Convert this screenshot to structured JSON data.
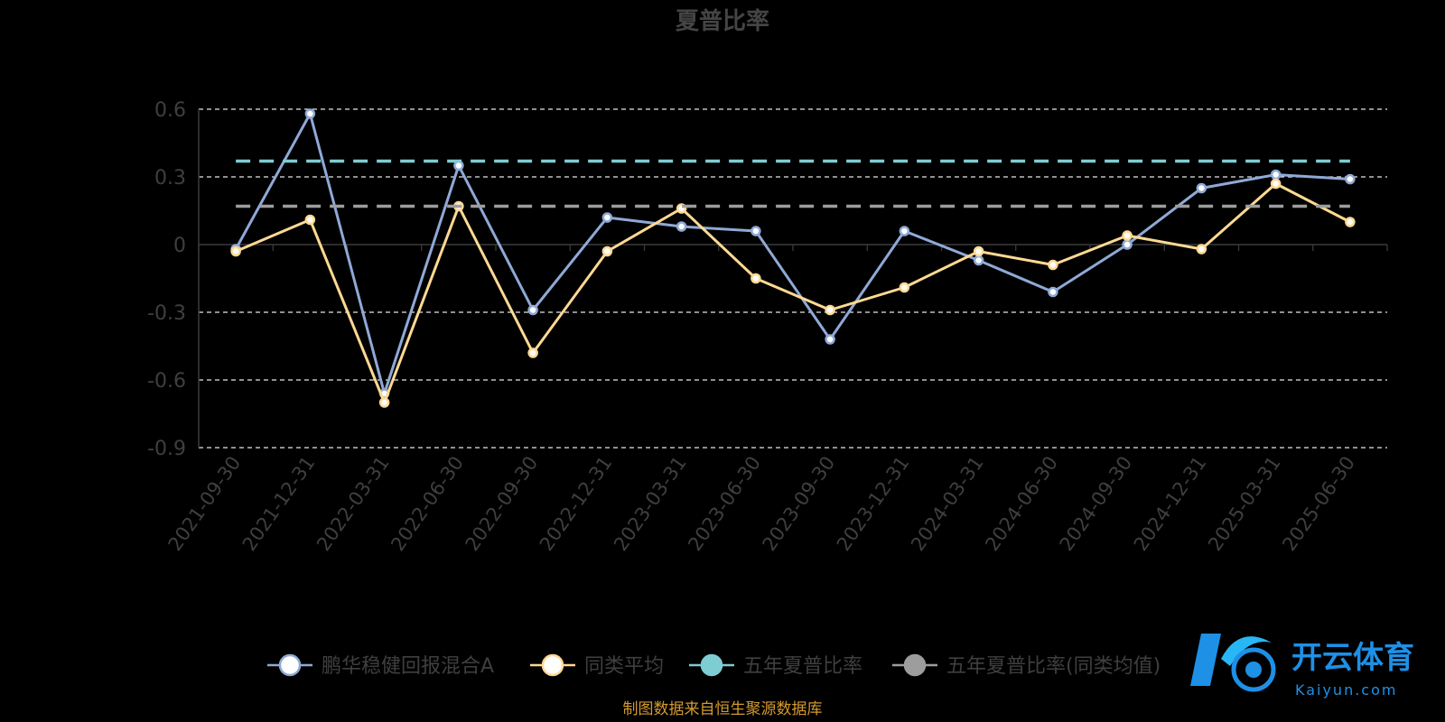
{
  "chart_data": {
    "type": "line",
    "title": "夏普比率",
    "categories": [
      "2021-09-30",
      "2021-12-31",
      "2022-03-31",
      "2022-06-30",
      "2022-09-30",
      "2022-12-31",
      "2023-03-31",
      "2023-06-30",
      "2023-09-30",
      "2023-12-31",
      "2024-03-31",
      "2024-06-30",
      "2024-09-30",
      "2024-12-31",
      "2025-03-31",
      "2025-06-30"
    ],
    "ylim": [
      -0.9,
      0.6
    ],
    "yticks": [
      0.6,
      0.3,
      0,
      -0.3,
      -0.6,
      -0.9
    ],
    "ytick_labels": [
      "0.6",
      "0.3",
      "0",
      "-0.3",
      "-0.6",
      "-0.9"
    ],
    "grid": true,
    "legend_position": "bottom",
    "series": [
      {
        "name": "鹏华稳健回报混合A",
        "color": "#8fa9d6",
        "style": "line",
        "values": [
          -0.02,
          0.58,
          -0.66,
          0.35,
          -0.29,
          0.12,
          0.08,
          0.06,
          -0.42,
          0.06,
          -0.07,
          -0.21,
          0.0,
          0.25,
          0.31,
          0.29
        ]
      },
      {
        "name": "同类平均",
        "color": "#ffd993",
        "style": "line",
        "values": [
          -0.03,
          0.11,
          -0.7,
          0.17,
          -0.48,
          -0.03,
          0.16,
          -0.15,
          -0.29,
          -0.19,
          -0.03,
          -0.09,
          0.04,
          -0.02,
          0.27,
          0.1
        ]
      },
      {
        "name": "五年夏普比率",
        "color": "#7ecdd3",
        "style": "dashed",
        "values": [
          0.37,
          0.37,
          0.37,
          0.37,
          0.37,
          0.37,
          0.37,
          0.37,
          0.37,
          0.37,
          0.37,
          0.37,
          0.37,
          0.37,
          0.37,
          0.37
        ]
      },
      {
        "name": "五年夏普比率(同类均值)",
        "color": "#9d9d9d",
        "style": "dashed",
        "values": [
          0.17,
          0.17,
          0.17,
          0.17,
          0.17,
          0.17,
          0.17,
          0.17,
          0.17,
          0.17,
          0.17,
          0.17,
          0.17,
          0.17,
          0.17,
          0.17
        ]
      }
    ]
  },
  "source_text": "制图数据来自恒生聚源数据库",
  "watermark": {
    "text_cn": "开云体育",
    "text_en": "Kaiyun.com",
    "color": "#1e90e6"
  }
}
